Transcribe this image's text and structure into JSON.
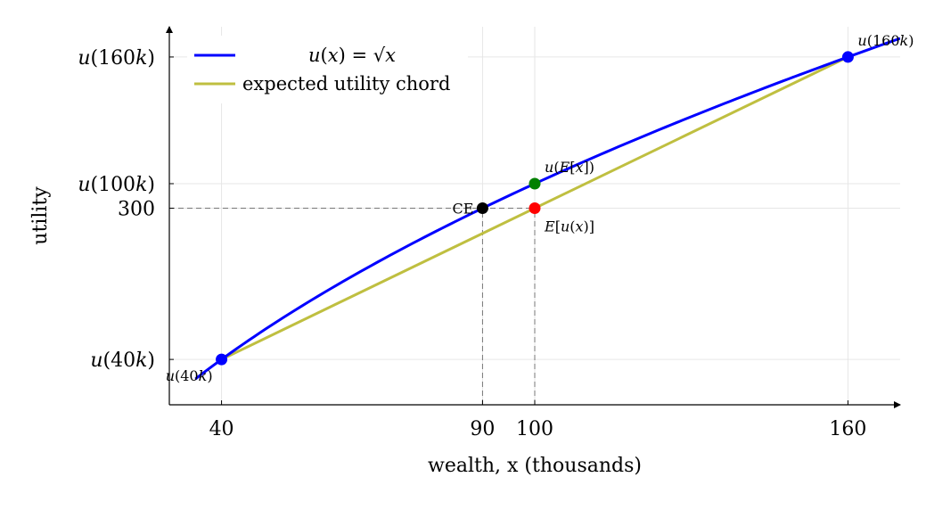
{
  "chart_data": {
    "type": "line",
    "xlabel": "wealth, x (thousands)",
    "ylabel": "utility",
    "xlim": [
      30,
      170
    ],
    "ylim": [
      170,
      420
    ],
    "grid": true,
    "legend_position": "top-left",
    "x_ticks": [
      {
        "value": 40,
        "label": "40"
      },
      {
        "value": 90,
        "label": "90"
      },
      {
        "value": 100,
        "label": "100"
      },
      {
        "value": 160,
        "label": "160"
      }
    ],
    "y_ticks": [
      {
        "value": 200,
        "label": "u(40k)"
      },
      {
        "value": 300,
        "label": "300"
      },
      {
        "value": 316.23,
        "label": "u(100k)"
      },
      {
        "value": 400,
        "label": "u(160k)"
      }
    ],
    "series": [
      {
        "name": "u(x) = √x",
        "color": "#0000ff",
        "function": "sqrt_scaled",
        "x_range": [
          35,
          170
        ]
      },
      {
        "name": "expected utility chord",
        "color": "#bfbf40",
        "points": [
          [
            40,
            200
          ],
          [
            160,
            400
          ]
        ],
        "x_range": [
          35,
          170
        ]
      }
    ],
    "points": [
      {
        "x": 40,
        "y": 200,
        "color": "#0000ff",
        "label": "u(40k)",
        "label_pos": "below-left"
      },
      {
        "x": 160,
        "y": 400,
        "color": "#0000ff",
        "label": "u(160k)",
        "label_pos": "above-right"
      },
      {
        "x": 100,
        "y": 316.23,
        "color": "#008000",
        "label": "u(E[x])",
        "label_pos": "above-right"
      },
      {
        "x": 100,
        "y": 300,
        "color": "#ff0000",
        "label": "E[u(x)]",
        "label_pos": "below-right"
      },
      {
        "x": 90,
        "y": 300,
        "color": "#000000",
        "label": "CE",
        "label_pos": "left"
      }
    ],
    "guides": [
      {
        "from": [
          30,
          300
        ],
        "to": [
          100,
          300
        ]
      },
      {
        "from": [
          90,
          170
        ],
        "to": [
          90,
          300
        ]
      },
      {
        "from": [
          100,
          170
        ],
        "to": [
          100,
          300
        ]
      }
    ]
  }
}
